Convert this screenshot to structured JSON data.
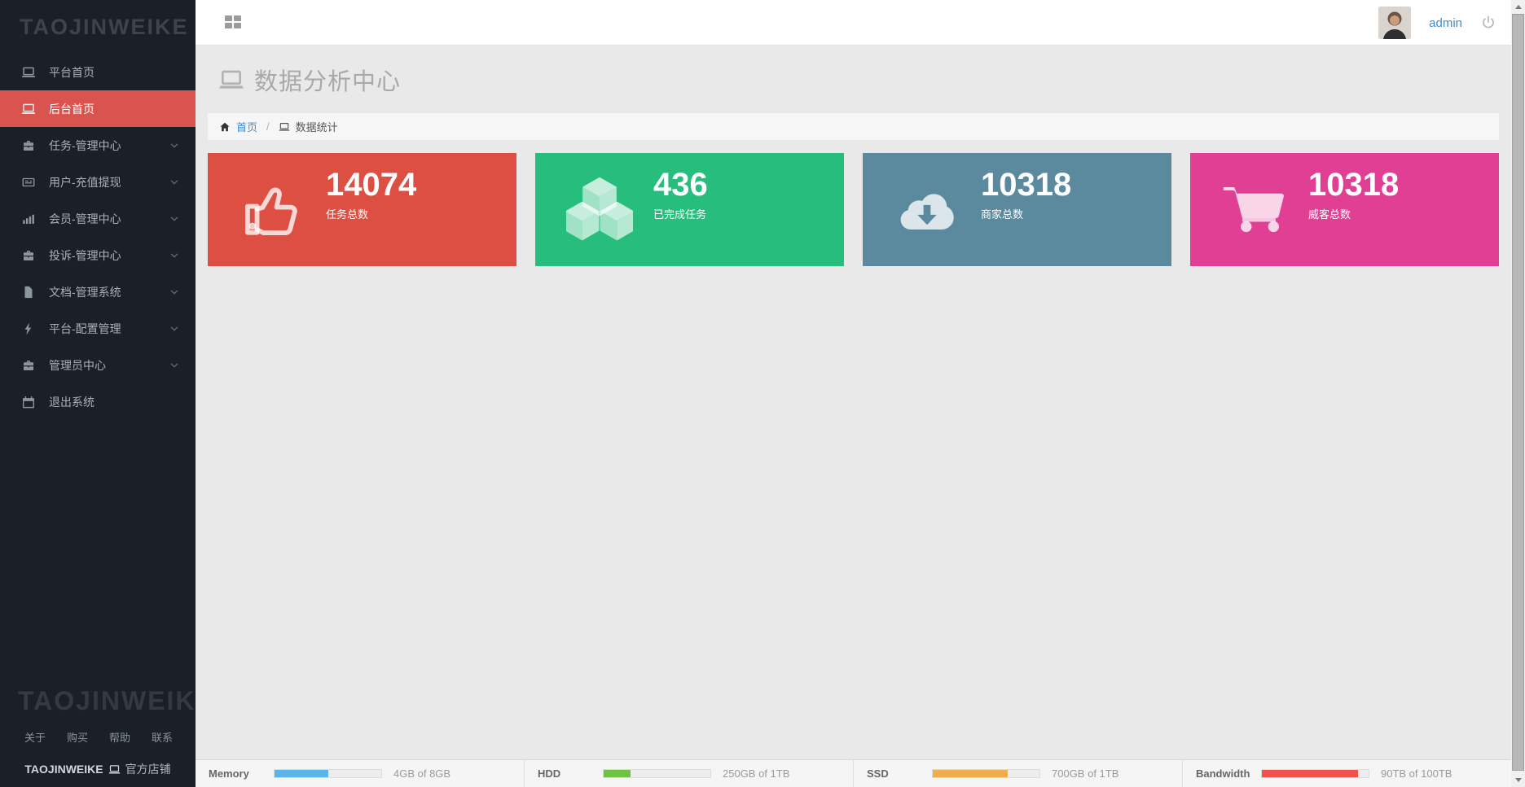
{
  "topbar": {
    "username": "admin"
  },
  "sidebar": {
    "logo": "TAOJINWEIKE",
    "items": [
      {
        "label": "平台首页",
        "icon": "laptop",
        "active": false,
        "has_submenu": false
      },
      {
        "label": "后台首页",
        "icon": "laptop",
        "active": true,
        "has_submenu": false
      },
      {
        "label": "任务-管理中心",
        "icon": "briefcase",
        "active": false,
        "has_submenu": true
      },
      {
        "label": "用户-充值提现",
        "icon": "newspaper",
        "active": false,
        "has_submenu": true
      },
      {
        "label": "会员-管理中心",
        "icon": "bar-chart",
        "active": false,
        "has_submenu": true
      },
      {
        "label": "投诉-管理中心",
        "icon": "briefcase",
        "active": false,
        "has_submenu": true
      },
      {
        "label": "文档-管理系统",
        "icon": "file-text",
        "active": false,
        "has_submenu": true
      },
      {
        "label": "平台-配置管理",
        "icon": "bolt",
        "active": false,
        "has_submenu": true
      },
      {
        "label": "管理员中心",
        "icon": "briefcase",
        "active": false,
        "has_submenu": true
      },
      {
        "label": "退出系统",
        "icon": "calendar",
        "active": false,
        "has_submenu": false
      }
    ],
    "footer": {
      "watermark": "TAOJINWEIKE",
      "links": [
        "关于",
        "购买",
        "帮助",
        "联系"
      ],
      "store_prefix": "TAOJINWEIKE",
      "store_suffix": "官方店铺"
    }
  },
  "page": {
    "title": "数据分析中心",
    "breadcrumb": {
      "home": "首页",
      "separator": "/",
      "current": "数据统计"
    }
  },
  "stats": [
    {
      "value": "14074",
      "label": "任务总数",
      "icon": "thumbs-up-icon",
      "color": "#dd4f43"
    },
    {
      "value": "436",
      "label": "已完成任务",
      "icon": "cubes-icon",
      "color": "#27bd7d"
    },
    {
      "value": "10318",
      "label": "商家总数",
      "icon": "cloud-download-icon",
      "color": "#5b8a9e"
    },
    {
      "value": "10318",
      "label": "威客总数",
      "icon": "shopping-cart-icon",
      "color": "#e03f94"
    }
  ],
  "status_bar": [
    {
      "label": "Memory",
      "value": "4GB of 8GB",
      "percent": 50,
      "color": "#5ab6e8"
    },
    {
      "label": "HDD",
      "value": "250GB of 1TB",
      "percent": 25,
      "color": "#6ec343"
    },
    {
      "label": "SSD",
      "value": "700GB of 1TB",
      "percent": 70,
      "color": "#f0ad4e"
    },
    {
      "label": "Bandwidth",
      "value": "90TB of 100TB",
      "percent": 90,
      "color": "#f0524d"
    }
  ]
}
